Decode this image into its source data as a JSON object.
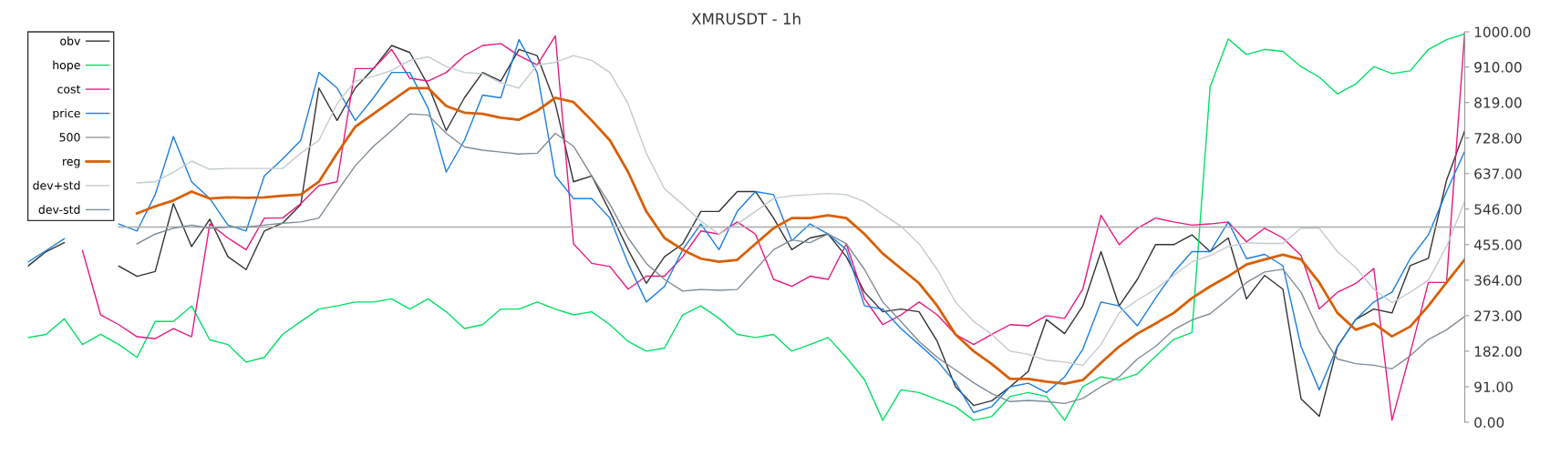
{
  "chart_data": {
    "type": "line",
    "title": "XMRUSDT - 1h",
    "categories": [
      null,
      null,
      null,
      null,
      null,
      null,
      null,
      null,
      null,
      null,
      null,
      null,
      null,
      null,
      null,
      null,
      null,
      null,
      null,
      null,
      null,
      null,
      null,
      null,
      null,
      null,
      null,
      null,
      null,
      null,
      null,
      null,
      null,
      null,
      null,
      null,
      null,
      null,
      null,
      null,
      null,
      null,
      null,
      null,
      null,
      null,
      null,
      null,
      null,
      null,
      null,
      null,
      null,
      null,
      null,
      null,
      null,
      null,
      null,
      null,
      null,
      null,
      null,
      null,
      null,
      null,
      null,
      null,
      null,
      null,
      null,
      null,
      null,
      null,
      null,
      null,
      null,
      null,
      null,
      null
    ],
    "series": [
      {
        "name": "obv",
        "color": "#333333",
        "values": [
          400,
          437,
          460,
          null,
          null,
          400,
          374,
          386,
          560,
          450,
          520,
          424,
          391,
          490,
          510,
          557,
          856,
          773,
          856,
          906,
          965,
          947,
          864,
          747,
          831,
          896,
          874,
          955,
          939,
          816,
          616,
          631,
          540,
          442,
          356,
          424,
          457,
          540,
          540,
          591,
          591,
          523,
          442,
          472,
          482,
          424,
          333,
          283,
          290,
          283,
          207,
          91,
          43,
          55,
          91,
          130,
          263,
          227,
          298,
          437,
          298,
          366,
          455,
          455,
          480,
          437,
          472,
          316,
          376,
          341,
          60,
          15,
          194,
          263,
          290,
          280,
          401,
          420,
          620,
          747
        ]
      },
      {
        "name": "hope",
        "color": "#00e064",
        "values": [
          217,
          225,
          265,
          199,
          225,
          199,
          166,
          258,
          258,
          298,
          211,
          199,
          154,
          166,
          225,
          258,
          290,
          298,
          308,
          308,
          316,
          290,
          316,
          283,
          240,
          250,
          290,
          290,
          308,
          290,
          275,
          283,
          250,
          207,
          182,
          190,
          275,
          298,
          266,
          225,
          217,
          225,
          182,
          199,
          217,
          166,
          109,
          5,
          83,
          76,
          58,
          40,
          5,
          15,
          66,
          76,
          66,
          5,
          91,
          116,
          108,
          124,
          169,
          212,
          230,
          859,
          982,
          942,
          955,
          950,
          911,
          884,
          841,
          866,
          911,
          893,
          900,
          955,
          980,
          995
        ]
      },
      {
        "name": "cost",
        "color": "#e8187f",
        "values": [
          null,
          null,
          null,
          440,
          275,
          250,
          219,
          214,
          240,
          219,
          508,
          472,
          442,
          523,
          523,
          560,
          606,
          616,
          906,
          906,
          955,
          881,
          874,
          896,
          939,
          965,
          970,
          939,
          915,
          990,
          457,
          407,
          399,
          341,
          374,
          374,
          424,
          490,
          482,
          513,
          482,
          366,
          348,
          374,
          366,
          457,
          316,
          250,
          275,
          308,
          275,
          225,
          199,
          225,
          250,
          247,
          273,
          266,
          341,
          530,
          455,
          497,
          523,
          513,
          505,
          508,
          513,
          462,
          497,
          472,
          427,
          290,
          333,
          355,
          394,
          5,
          177,
          358,
          358,
          1000
        ]
      },
      {
        "name": "price",
        "color": "#1a7fe0",
        "values": [
          410,
          440,
          470,
          null,
          null,
          508,
          490,
          583,
          732,
          616,
          573,
          505,
          490,
          631,
          674,
          722,
          896,
          856,
          773,
          831,
          896,
          896,
          805,
          641,
          722,
          838,
          831,
          980,
          896,
          631,
          573,
          573,
          523,
          407,
          308,
          348,
          442,
          508,
          442,
          540,
          591,
          583,
          465,
          508,
          482,
          442,
          298,
          290,
          240,
          199,
          157,
          101,
          25,
          40,
          91,
          100,
          76,
          116,
          187,
          308,
          298,
          247,
          318,
          384,
          437,
          437,
          513,
          419,
          430,
          401,
          194,
          83,
          194,
          263,
          308,
          333,
          419,
          480,
          591,
          694
        ]
      },
      {
        "name": "500",
        "color": "#aaaaaa",
        "values": [
          null,
          null,
          null,
          null,
          null,
          500,
          500,
          500,
          500,
          500,
          500,
          500,
          500,
          500,
          500,
          500,
          500,
          500,
          500,
          500,
          500,
          500,
          500,
          500,
          500,
          500,
          500,
          500,
          500,
          500,
          500,
          500,
          500,
          500,
          500,
          500,
          500,
          500,
          500,
          500,
          500,
          500,
          500,
          500,
          500,
          500,
          500,
          500,
          500,
          500,
          500,
          500,
          500,
          500,
          500,
          500,
          500,
          500,
          500,
          500,
          500,
          500,
          500,
          500,
          500,
          500,
          500,
          500,
          500,
          500,
          500,
          500,
          500,
          500,
          500,
          500,
          500,
          500,
          500,
          500
        ]
      },
      {
        "name": "reg",
        "color": "#d95f02",
        "values": [
          null,
          null,
          null,
          null,
          null,
          null,
          535,
          553,
          568,
          591,
          573,
          576,
          575,
          576,
          580,
          583,
          616,
          689,
          757,
          790,
          823,
          856,
          856,
          810,
          793,
          790,
          780,
          775,
          798,
          831,
          820,
          773,
          722,
          641,
          540,
          472,
          442,
          419,
          411,
          416,
          457,
          497,
          523,
          523,
          530,
          523,
          482,
          432,
          394,
          356,
          298,
          225,
          182,
          149,
          111,
          111,
          104,
          99,
          108,
          152,
          194,
          227,
          253,
          280,
          318,
          348,
          374,
          404,
          417,
          429,
          417,
          358,
          280,
          237,
          253,
          220,
          245,
          298,
          358,
          417
        ]
      },
      {
        "name": "dev+std",
        "color": "#c3cbd0",
        "values": [
          null,
          null,
          null,
          null,
          null,
          null,
          613,
          616,
          640,
          669,
          648,
          650,
          650,
          650,
          650,
          689,
          722,
          816,
          874,
          886,
          901,
          927,
          936,
          911,
          896,
          893,
          869,
          856,
          915,
          922,
          939,
          927,
          896,
          816,
          689,
          598,
          558,
          515,
          482,
          508,
          540,
          573,
          580,
          583,
          586,
          583,
          565,
          533,
          502,
          457,
          391,
          308,
          258,
          225,
          182,
          174,
          159,
          154,
          146,
          199,
          280,
          313,
          341,
          376,
          411,
          427,
          450,
          460,
          458,
          458,
          497,
          497,
          437,
          397,
          341,
          306,
          333,
          364,
          450,
          566
        ]
      },
      {
        "name": "dev-std",
        "color": "#7f8c96",
        "values": [
          null,
          null,
          null,
          null,
          null,
          null,
          457,
          482,
          497,
          505,
          497,
          500,
          500,
          505,
          510,
          513,
          523,
          591,
          657,
          707,
          747,
          790,
          787,
          740,
          705,
          697,
          692,
          687,
          689,
          740,
          707,
          631,
          558,
          472,
          407,
          366,
          336,
          340,
          338,
          340,
          391,
          442,
          467,
          460,
          482,
          457,
          391,
          308,
          258,
          207,
          166,
          134,
          101,
          73,
          53,
          56,
          53,
          48,
          61,
          91,
          116,
          162,
          194,
          237,
          262,
          278,
          316,
          358,
          385,
          392,
          333,
          232,
          162,
          150,
          146,
          137,
          170,
          212,
          237,
          271
        ]
      }
    ],
    "ylim": [
      0,
      1000
    ],
    "yticks": [
      {
        "value": 0,
        "label": "0.00"
      },
      {
        "value": 91,
        "label": "91.00"
      },
      {
        "value": 182,
        "label": "182.00"
      },
      {
        "value": 273,
        "label": "273.00"
      },
      {
        "value": 364,
        "label": "364.00"
      },
      {
        "value": 455,
        "label": "455.00"
      },
      {
        "value": 546,
        "label": "546.00"
      },
      {
        "value": 637,
        "label": "637.00"
      },
      {
        "value": 728,
        "label": "728.00"
      },
      {
        "value": 819,
        "label": "819.00"
      },
      {
        "value": 910,
        "label": "910.00"
      },
      {
        "value": 1000,
        "label": "1000.00"
      }
    ],
    "tick_labels": "y",
    "legend": "top left",
    "grid": false,
    "marker": "none",
    "line_style": "solid"
  }
}
